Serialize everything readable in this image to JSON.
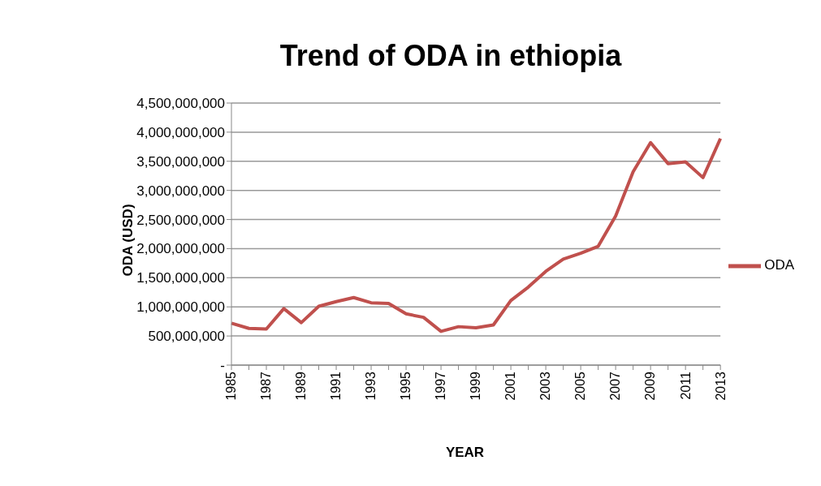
{
  "chart_data": {
    "type": "line",
    "title": "Trend of ODA in ethiopia",
    "xlabel": "YEAR",
    "ylabel": "ODA (USD)",
    "categories": [
      "1985",
      null,
      "1987",
      null,
      "1989",
      null,
      "1991",
      null,
      "1993",
      null,
      "1995",
      null,
      "1997",
      null,
      "1999",
      null,
      "2001",
      null,
      "2003",
      null,
      "2005",
      null,
      "2007",
      null,
      "2009",
      null,
      "2011",
      null,
      "2013"
    ],
    "series": [
      {
        "name": "ODA",
        "color": "#c0504d",
        "values": [
          720000000,
          630000000,
          620000000,
          970000000,
          730000000,
          1010000000,
          1090000000,
          1160000000,
          1070000000,
          1060000000,
          880000000,
          820000000,
          580000000,
          660000000,
          640000000,
          690000000,
          1110000000,
          1340000000,
          1610000000,
          1820000000,
          1920000000,
          2040000000,
          2560000000,
          3320000000,
          3820000000,
          3460000000,
          3490000000,
          3220000000,
          3890000000
        ]
      }
    ],
    "ylim": [
      0,
      4500000000
    ],
    "yticks": [
      {
        "value": 0,
        "label": "-"
      },
      {
        "value": 500000000,
        "label": "500,000,000"
      },
      {
        "value": 1000000000,
        "label": "1,000,000,000"
      },
      {
        "value": 1500000000,
        "label": "1,500,000,000"
      },
      {
        "value": 2000000000,
        "label": "2,000,000,000"
      },
      {
        "value": 2500000000,
        "label": "2,500,000,000"
      },
      {
        "value": 3000000000,
        "label": "3,000,000,000"
      },
      {
        "value": 3500000000,
        "label": "3,500,000,000"
      },
      {
        "value": 4000000000,
        "label": "4,000,000,000"
      },
      {
        "value": 4500000000,
        "label": "4,500,000,000"
      }
    ],
    "grid": "y",
    "legend": "right",
    "marker": "none",
    "line_style": "solid"
  }
}
